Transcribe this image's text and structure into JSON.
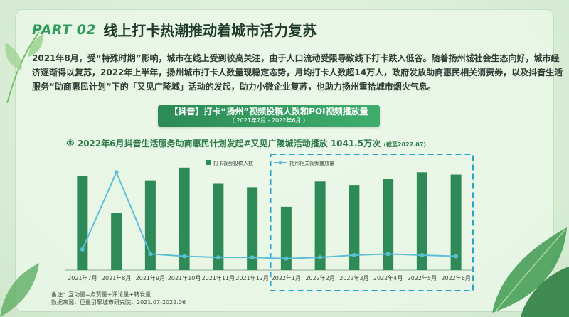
{
  "header": {
    "part_label": "PART 02",
    "title": "线上打卡热潮推动着城市活力复苏"
  },
  "paragraph": {
    "lines": [
      "2021年8月，受“特殊时期”影响，城市在线上受到较高关注，由于人口流动受限导致线下打卡跌入低谷。随着扬州城社会生态向好，城市经",
      "济逐渐得以复苏，2022年上半年，扬州城市打卡人数量现稳定态势，月均打卡人数超14万人，政府发放助商惠民相关消费券，以及抖音生活",
      "服务“助商惠民计划”下的「又见广陵城」活动的发起，助力小微企业复苏，也助力扬州重拾城市烟火气息。"
    ]
  },
  "banner": {
    "title": "【抖音】打卡“扬州”视频投稿人数和POI视频播放量",
    "range": "（ 2021年7月 - 2022年6月 ）"
  },
  "subtitle": {
    "text": "※ 2022年6月抖音生活服务助商惠民计划发起#又见广陵城活动播放  1041.5万次",
    "note": "(截至2022.07)"
  },
  "chart_data": {
    "type": "bar",
    "categories": [
      "2021年7月",
      "2021年8月",
      "2021年9月",
      "2021年10月",
      "2021年11月",
      "2021年12月",
      "2022年1月",
      "2022年2月",
      "2022年3月",
      "2022年4月",
      "2022年5月",
      "2022年6月"
    ],
    "series": [
      {
        "name": "打卡视频投稿人数",
        "type": "bar",
        "values": [
          82,
          50,
          78,
          89,
          75,
          72,
          55,
          77,
          74,
          79,
          85,
          83
        ]
      },
      {
        "name": "扬州相关视频播放量",
        "type": "line",
        "values": [
          18,
          85,
          14,
          12,
          11,
          11,
          10,
          11,
          13,
          14,
          13,
          12
        ]
      }
    ],
    "ylim": [
      0,
      100
    ],
    "grid": false,
    "legend": "top-center",
    "highlight_categories": [
      "2022年1月",
      "2022年6月"
    ],
    "colors": {
      "bar": "#2e8b57",
      "line": "#5cbfd6",
      "highlight_border": "#2aa3c9"
    }
  },
  "footnote": {
    "line1": "备注：互动量=点赞量+评论量+转发量",
    "line2": "数据来源：巨量引擎城市研究院，2021.07-2022.06"
  },
  "colors": {
    "accent": "#2e9a5b",
    "background": "#dff0dd"
  }
}
